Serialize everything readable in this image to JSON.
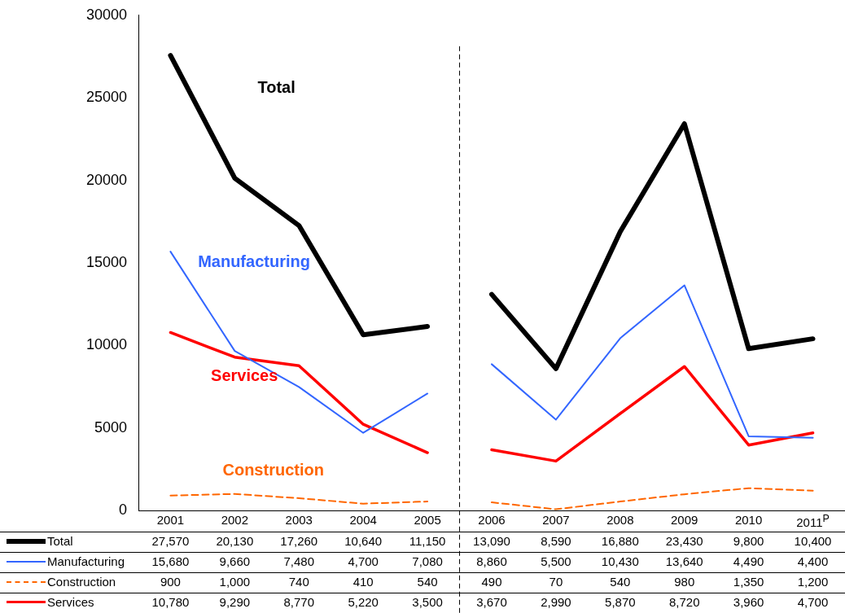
{
  "chart_data": {
    "type": "line",
    "categories": [
      "2001",
      "2002",
      "2003",
      "2004",
      "2005",
      "2006",
      "2007",
      "2008",
      "2009",
      "2010",
      "2011$^{P}$"
    ],
    "series": [
      {
        "name": "Total",
        "color": "#000000",
        "line_style": "solid",
        "values": [
          27570,
          20130,
          17260,
          10640,
          11150,
          13090,
          8590,
          16880,
          23430,
          9800,
          10400
        ],
        "value_labels": [
          "27,570",
          "20,130",
          "17,260",
          "10,640",
          "11,150",
          "13,090",
          "8,590",
          "16,880",
          "23,430",
          "9,800",
          "10,400"
        ]
      },
      {
        "name": "Manufacturing",
        "color": "#3366ff",
        "line_style": "solid",
        "values": [
          15680,
          9660,
          7480,
          4700,
          7080,
          8860,
          5500,
          10430,
          13640,
          4490,
          4400
        ],
        "value_labels": [
          "15,680",
          "9,660",
          "7,480",
          "4,700",
          "7,080",
          "8,860",
          "5,500",
          "10,430",
          "13,640",
          "4,490",
          "4,400"
        ]
      },
      {
        "name": "Construction",
        "color": "#ff6600",
        "line_style": "dashed",
        "values": [
          900,
          1000,
          740,
          410,
          540,
          490,
          70,
          540,
          980,
          1350,
          1200
        ],
        "value_labels": [
          "900",
          "1,000",
          "740",
          "410",
          "540",
          "490",
          "70",
          "540",
          "980",
          "1,350",
          "1,200"
        ]
      },
      {
        "name": "Services",
        "color": "#ff0000",
        "line_style": "solid",
        "values": [
          10780,
          9290,
          8770,
          5220,
          3500,
          3670,
          2990,
          5870,
          8720,
          3960,
          4700
        ],
        "value_labels": [
          "10,780",
          "9,290",
          "8,770",
          "5,220",
          "3,500",
          "3,670",
          "2,990",
          "5,870",
          "8,720",
          "3,960",
          "4,700"
        ]
      }
    ],
    "ylim": [
      0,
      30000
    ],
    "yticks": [
      0,
      5000,
      10000,
      15000,
      20000,
      25000,
      30000
    ],
    "grid": false,
    "legend": "bottom",
    "marker": "none",
    "annotations": [
      "Total",
      "Manufacturing",
      "Construction",
      "Services"
    ]
  }
}
